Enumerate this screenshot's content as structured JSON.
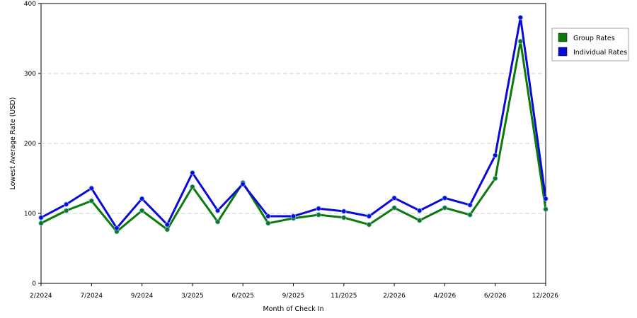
{
  "chart_data": {
    "type": "line",
    "title": "",
    "xlabel": "Month of Check In",
    "ylabel": "Lowest Average Rate (USD)",
    "ylim": [
      0,
      400
    ],
    "yticks": [
      0,
      100,
      200,
      300,
      400
    ],
    "x_tick_labels": [
      "2/2024",
      "7/2024",
      "9/2024",
      "3/2025",
      "6/2025",
      "9/2025",
      "11/2025",
      "2/2026",
      "4/2026",
      "6/2026",
      "12/2026"
    ],
    "point_count": 21,
    "grid": "horizontal dashed",
    "legend_position": "right",
    "series": [
      {
        "name": "Group Rates",
        "color": "#0a7a0a",
        "values": [
          86,
          104,
          118,
          74,
          104,
          77,
          138,
          88,
          144,
          86,
          93,
          98,
          94,
          84,
          108,
          90,
          108,
          98,
          150,
          346,
          106
        ]
      },
      {
        "name": "Individual Rates",
        "color": "#0a0ad6",
        "values": [
          94,
          113,
          136,
          79,
          121,
          84,
          158,
          104,
          142,
          96,
          96,
          107,
          103,
          96,
          122,
          104,
          122,
          112,
          183,
          380,
          121
        ]
      }
    ]
  }
}
